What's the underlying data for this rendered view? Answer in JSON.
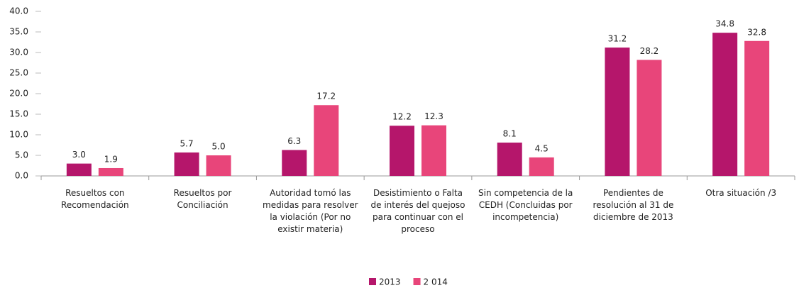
{
  "chart_data": {
    "type": "bar",
    "categories": [
      "Resueltos con Recomendación",
      "Resueltos por Conciliación",
      "Autoridad tomó las medidas para resolver la violación (Por no existir materia)",
      "Desistimiento o Falta de interés del quejoso para continuar con el proceso",
      "Sin competencia de la CEDH (Concluidas por incompetencia)",
      "Pendientes de resolución al 31 de diciembre de 2013",
      "Otra situación /3"
    ],
    "series": [
      {
        "name": "2013",
        "color": "#b5166b",
        "values": [
          3.0,
          5.7,
          6.3,
          12.2,
          8.1,
          31.2,
          34.8
        ],
        "value_labels": [
          "3.0",
          "5.7",
          "6.3",
          "12.2",
          "8.1",
          "31.2",
          "34.8"
        ]
      },
      {
        "name": "2 014",
        "color": "#e8457a",
        "values": [
          1.9,
          5.0,
          17.2,
          12.3,
          4.5,
          28.2,
          32.8
        ],
        "value_labels": [
          "1.9",
          "5.0",
          "17.2",
          "12.3",
          "4.5",
          "28.2",
          "32.8"
        ]
      }
    ],
    "ylim": [
      0,
      40
    ],
    "yticks": [
      {
        "value": 0,
        "label": "0.0"
      },
      {
        "value": 5,
        "label": "5.0"
      },
      {
        "value": 10,
        "label": "10.0"
      },
      {
        "value": 15,
        "label": "15.0"
      },
      {
        "value": 20,
        "label": "20.0"
      },
      {
        "value": 25,
        "label": "25.0"
      },
      {
        "value": 30,
        "label": "30.0"
      },
      {
        "value": 35,
        "label": "35.0"
      },
      {
        "value": 40,
        "label": "40.0"
      }
    ],
    "legend": "bottom"
  }
}
